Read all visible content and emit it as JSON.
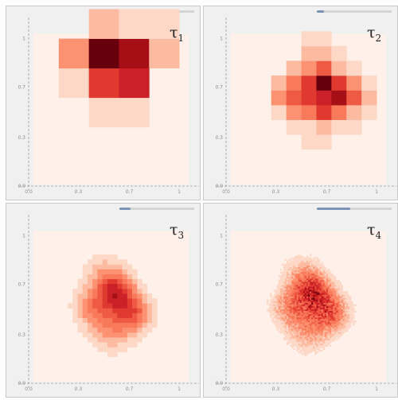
{
  "chart_data": [
    {
      "type": "heatmap",
      "label": "τ1",
      "label_base": "τ",
      "label_sub": "1",
      "slider_value": 0.1,
      "xlim": [
        0,
        1.1
      ],
      "ylim": [
        0,
        1.1
      ],
      "x_ticks": [
        "0.0",
        "0.3",
        "0.7",
        "1"
      ],
      "y_ticks": [
        "0.0",
        "0.3",
        "0.7",
        "1"
      ],
      "background": "#fff1ea",
      "grid_x0": 0.2,
      "grid_y0": 0.2,
      "cell": 0.2,
      "cells": [
        [
          0,
          0,
          0,
          0
        ],
        [
          0,
          1,
          1,
          0
        ],
        [
          1,
          6,
          7,
          0
        ],
        [
          3,
          9,
          8,
          2
        ],
        [
          0,
          2,
          1,
          1
        ]
      ]
    },
    {
      "type": "heatmap",
      "label": "τ2",
      "label_base": "τ",
      "label_sub": "2",
      "slider_value": 0.1,
      "xlim": [
        0,
        1.1
      ],
      "ylim": [
        0,
        1.1
      ],
      "x_ticks": [
        "0.0",
        "0.3",
        "0.7",
        "1"
      ],
      "y_ticks": [
        "0.0",
        "0.3",
        "0.7",
        "1"
      ],
      "background": "#fff1ea",
      "grid_x0": 0.3,
      "grid_y0": 0.25,
      "cell": 0.1,
      "cells": [
        [
          0,
          0,
          1,
          1,
          0,
          0,
          0
        ],
        [
          0,
          1,
          1,
          2,
          1,
          1,
          0
        ],
        [
          1,
          3,
          4,
          6,
          4,
          2,
          1
        ],
        [
          3,
          5,
          6,
          7,
          8,
          5,
          2
        ],
        [
          2,
          4,
          6,
          9,
          6,
          3,
          1
        ],
        [
          0,
          2,
          3,
          5,
          2,
          1,
          0
        ],
        [
          0,
          0,
          2,
          2,
          1,
          0,
          0
        ],
        [
          0,
          0,
          1,
          1,
          0,
          0,
          0
        ]
      ]
    },
    {
      "type": "heatmap",
      "label": "τ3",
      "label_base": "τ",
      "label_sub": "3",
      "slider_value": 0.15,
      "xlim": [
        0,
        1.1
      ],
      "ylim": [
        0,
        1.1
      ],
      "x_ticks": [
        "0.0",
        "0.3",
        "0.7",
        "1"
      ],
      "y_ticks": [
        "0.0",
        "0.3",
        "0.7",
        "1"
      ],
      "background": "#fff1ea",
      "resolution": 0.033,
      "peak": [
        0.6,
        0.62
      ],
      "extent": [
        0.16,
        0.88,
        0.18,
        0.92
      ]
    },
    {
      "type": "heatmap",
      "label": "τ4",
      "label_base": "τ",
      "label_sub": "4",
      "slider_value": 0.45,
      "xlim": [
        0,
        1.1
      ],
      "ylim": [
        0,
        1.1
      ],
      "x_ticks": [
        "0.0",
        "0.3",
        "0.7",
        "1"
      ],
      "y_ticks": [
        "0.0",
        "0.3",
        "0.7",
        "1"
      ],
      "background": "#fff1ea",
      "resolution": 0.011,
      "peak": [
        0.6,
        0.62
      ],
      "extent": [
        0.16,
        0.92,
        0.14,
        0.94
      ]
    }
  ],
  "colors": {
    "panel_bg": "#f0f0f0",
    "frame": "#c8c8c8",
    "axis_dash": "#9a9a9a",
    "slider_track": "#d4d4d4",
    "slider_thumb": "#7b93b5",
    "scale": [
      "#fff1ea",
      "#fdd8c6",
      "#fcbba1",
      "#fc9272",
      "#f97a5b",
      "#ef5a45",
      "#e0392f",
      "#cb2027",
      "#a50f15",
      "#67000d"
    ]
  }
}
